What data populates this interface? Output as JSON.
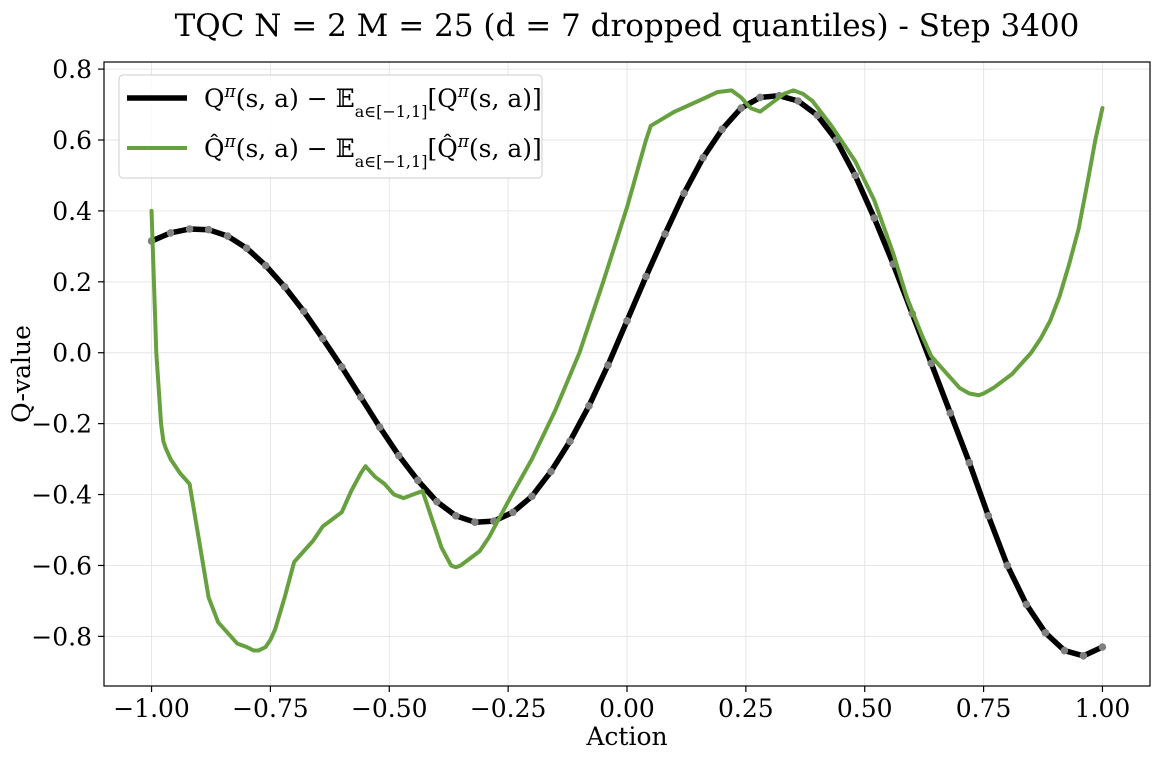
{
  "chart_data": {
    "type": "line",
    "title": "TQC N = 2 M = 25 (d = 7 dropped quantiles) - Step 3400",
    "xlabel": "Action",
    "ylabel": "Q-value",
    "xlim": [
      -1.1,
      1.1
    ],
    "ylim": [
      -0.94,
      0.82
    ],
    "grid": true,
    "legend_position": "top-left",
    "x_ticks": [
      -1.0,
      -0.75,
      -0.5,
      -0.25,
      0.0,
      0.25,
      0.5,
      0.75,
      1.0
    ],
    "x_tick_labels": [
      "−1.00",
      "−0.75",
      "−0.50",
      "−0.25",
      "0.00",
      "0.25",
      "0.50",
      "0.75",
      "1.00"
    ],
    "y_ticks": [
      -0.8,
      -0.6,
      -0.4,
      -0.2,
      0.0,
      0.2,
      0.4,
      0.6,
      0.8
    ],
    "y_tick_labels": [
      "−0.8",
      "−0.6",
      "−0.4",
      "−0.2",
      "0.0",
      "0.2",
      "0.4",
      "0.6",
      "0.8"
    ],
    "series": [
      {
        "name": "Qπ(s, a) − 𝔼 a∈[−1,1] [Qπ(s, a)]",
        "color": "#000000",
        "markers": true,
        "marker_color": "#808080",
        "x": [
          -1.0,
          -0.96,
          -0.92,
          -0.88,
          -0.84,
          -0.8,
          -0.76,
          -0.72,
          -0.68,
          -0.64,
          -0.6,
          -0.56,
          -0.52,
          -0.48,
          -0.44,
          -0.4,
          -0.36,
          -0.32,
          -0.28,
          -0.24,
          -0.2,
          -0.16,
          -0.12,
          -0.08,
          -0.04,
          0.0,
          0.04,
          0.08,
          0.12,
          0.16,
          0.2,
          0.24,
          0.28,
          0.32,
          0.36,
          0.4,
          0.44,
          0.48,
          0.52,
          0.56,
          0.6,
          0.64,
          0.68,
          0.72,
          0.76,
          0.8,
          0.84,
          0.88,
          0.92,
          0.96,
          1.0
        ],
        "y": [
          0.315,
          0.338,
          0.349,
          0.347,
          0.329,
          0.295,
          0.246,
          0.186,
          0.117,
          0.04,
          -0.04,
          -0.125,
          -0.21,
          -0.29,
          -0.36,
          -0.42,
          -0.46,
          -0.478,
          -0.475,
          -0.45,
          -0.405,
          -0.335,
          -0.25,
          -0.15,
          -0.035,
          0.09,
          0.215,
          0.335,
          0.45,
          0.55,
          0.63,
          0.69,
          0.72,
          0.725,
          0.71,
          0.67,
          0.6,
          0.5,
          0.38,
          0.25,
          0.11,
          -0.03,
          -0.17,
          -0.31,
          -0.46,
          -0.6,
          -0.71,
          -0.79,
          -0.84,
          -0.855,
          -0.83
        ]
      },
      {
        "name": "Q̂π(s, a) − 𝔼 a∈[−1,1] [Q̂π(s, a)]",
        "color": "#67a13f",
        "markers": false,
        "x": [
          -1.0,
          -0.995,
          -0.99,
          -0.985,
          -0.98,
          -0.975,
          -0.97,
          -0.96,
          -0.94,
          -0.92,
          -0.9,
          -0.88,
          -0.86,
          -0.84,
          -0.82,
          -0.8,
          -0.785,
          -0.775,
          -0.76,
          -0.75,
          -0.74,
          -0.72,
          -0.7,
          -0.68,
          -0.66,
          -0.64,
          -0.62,
          -0.6,
          -0.58,
          -0.56,
          -0.55,
          -0.53,
          -0.51,
          -0.49,
          -0.47,
          -0.45,
          -0.43,
          -0.41,
          -0.39,
          -0.37,
          -0.36,
          -0.35,
          -0.33,
          -0.31,
          -0.29,
          -0.27,
          -0.25,
          -0.2,
          -0.15,
          -0.1,
          -0.05,
          0.0,
          0.04,
          0.05,
          0.1,
          0.15,
          0.19,
          0.22,
          0.24,
          0.26,
          0.28,
          0.3,
          0.33,
          0.35,
          0.37,
          0.39,
          0.43,
          0.48,
          0.52,
          0.56,
          0.59,
          0.62,
          0.64,
          0.66,
          0.68,
          0.7,
          0.72,
          0.74,
          0.75,
          0.77,
          0.79,
          0.81,
          0.83,
          0.85,
          0.87,
          0.89,
          0.91,
          0.93,
          0.95,
          0.97,
          0.985,
          1.0
        ],
        "y": [
          0.4,
          0.2,
          0.0,
          -0.1,
          -0.2,
          -0.25,
          -0.27,
          -0.3,
          -0.34,
          -0.37,
          -0.53,
          -0.69,
          -0.76,
          -0.79,
          -0.82,
          -0.83,
          -0.84,
          -0.84,
          -0.83,
          -0.81,
          -0.78,
          -0.69,
          -0.59,
          -0.56,
          -0.53,
          -0.49,
          -0.47,
          -0.45,
          -0.39,
          -0.34,
          -0.32,
          -0.35,
          -0.37,
          -0.4,
          -0.41,
          -0.4,
          -0.39,
          -0.47,
          -0.55,
          -0.6,
          -0.605,
          -0.6,
          -0.58,
          -0.56,
          -0.52,
          -0.47,
          -0.42,
          -0.3,
          -0.16,
          0.0,
          0.2,
          0.41,
          0.6,
          0.64,
          0.68,
          0.71,
          0.735,
          0.74,
          0.72,
          0.69,
          0.68,
          0.7,
          0.73,
          0.74,
          0.73,
          0.71,
          0.64,
          0.54,
          0.43,
          0.28,
          0.15,
          0.05,
          -0.01,
          -0.04,
          -0.07,
          -0.1,
          -0.115,
          -0.12,
          -0.115,
          -0.1,
          -0.08,
          -0.06,
          -0.03,
          0.0,
          0.04,
          0.09,
          0.16,
          0.25,
          0.35,
          0.49,
          0.6,
          0.69
        ]
      }
    ]
  }
}
